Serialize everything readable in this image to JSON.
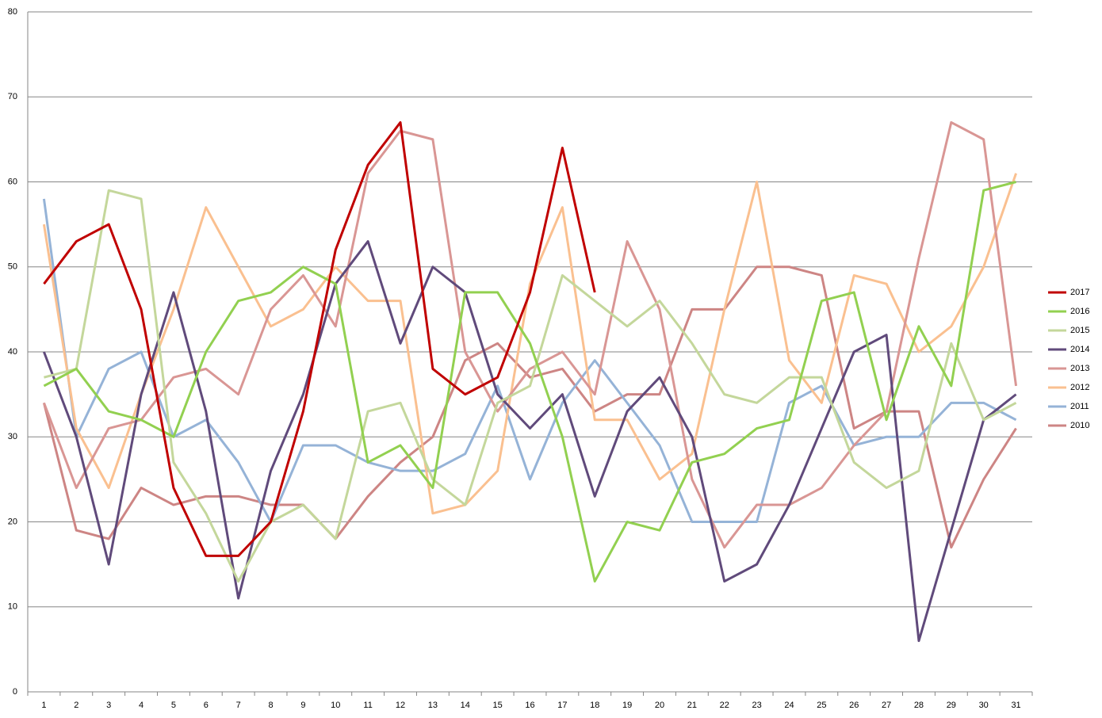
{
  "chart_data": {
    "type": "line",
    "categories": [
      "1",
      "2",
      "3",
      "4",
      "5",
      "6",
      "7",
      "8",
      "9",
      "10",
      "11",
      "12",
      "13",
      "14",
      "15",
      "16",
      "17",
      "18",
      "19",
      "20",
      "21",
      "22",
      "23",
      "24",
      "25",
      "26",
      "27",
      "28",
      "29",
      "30",
      "31"
    ],
    "series": [
      {
        "name": "2017",
        "color": "#c00000",
        "values": [
          48,
          53,
          55,
          45,
          24,
          16,
          16,
          20,
          33,
          52,
          62,
          67,
          38,
          35,
          37,
          47,
          64,
          47,
          null,
          null,
          null,
          null,
          null,
          null,
          null,
          null,
          null,
          null,
          null,
          null,
          null
        ]
      },
      {
        "name": "2016",
        "color": "#92d050",
        "values": [
          36,
          38,
          33,
          32,
          30,
          40,
          46,
          47,
          50,
          48,
          27,
          29,
          24,
          47,
          47,
          41,
          30,
          13,
          20,
          19,
          27,
          28,
          31,
          32,
          46,
          47,
          32,
          43,
          36,
          59,
          60
        ]
      },
      {
        "name": "2015",
        "color": "#c4d79b",
        "values": [
          37,
          38,
          59,
          58,
          27,
          21,
          13,
          20,
          22,
          18,
          33,
          34,
          25,
          22,
          34,
          36,
          49,
          46,
          43,
          46,
          41,
          35,
          34,
          37,
          37,
          27,
          24,
          26,
          41,
          32,
          34
        ]
      },
      {
        "name": "2014",
        "color": "#604a7b",
        "values": [
          40,
          30,
          15,
          35,
          47,
          33,
          11,
          26,
          35,
          48,
          53,
          41,
          50,
          47,
          35,
          31,
          35,
          23,
          33,
          37,
          30,
          13,
          15,
          22,
          31,
          40,
          42,
          6,
          19,
          32,
          35
        ]
      },
      {
        "name": "2013",
        "color": "#d99694",
        "values": [
          34,
          24,
          31,
          32,
          37,
          38,
          35,
          45,
          49,
          43,
          61,
          66,
          65,
          40,
          33,
          38,
          40,
          35,
          53,
          45,
          25,
          17,
          22,
          22,
          24,
          29,
          33,
          51,
          67,
          65,
          36
        ]
      },
      {
        "name": "2012",
        "color": "#fac090",
        "values": [
          55,
          31,
          24,
          35,
          45,
          57,
          50,
          43,
          45,
          50,
          46,
          46,
          21,
          22,
          26,
          48,
          57,
          32,
          32,
          25,
          28,
          45,
          60,
          39,
          34,
          49,
          48,
          40,
          43,
          50,
          61
        ]
      },
      {
        "name": "2011",
        "color": "#95b3d7",
        "values": [
          58,
          30,
          38,
          40,
          30,
          32,
          27,
          20,
          29,
          29,
          27,
          26,
          26,
          28,
          36,
          25,
          34,
          39,
          34,
          29,
          20,
          20,
          20,
          34,
          36,
          29,
          30,
          30,
          34,
          34,
          32
        ]
      },
      {
        "name": "2010",
        "color": "#cd8584",
        "values": [
          34,
          19,
          18,
          24,
          22,
          23,
          23,
          22,
          22,
          18,
          23,
          27,
          30,
          39,
          41,
          37,
          38,
          33,
          35,
          35,
          45,
          45,
          50,
          50,
          49,
          31,
          33,
          33,
          17,
          25,
          31
        ]
      }
    ],
    "ylim": [
      0,
      80
    ],
    "yticks": [
      0,
      10,
      20,
      30,
      40,
      50,
      60,
      70,
      80
    ],
    "grid": true,
    "legend": "right"
  }
}
